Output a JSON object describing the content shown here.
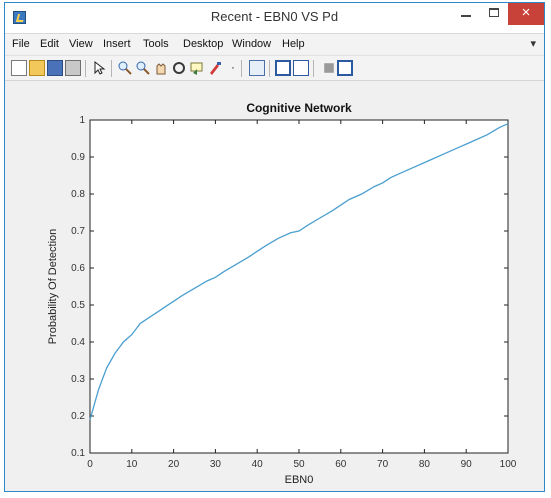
{
  "window": {
    "title": "Recent - EBN0 VS Pd",
    "close_glyph": "×"
  },
  "menu": {
    "items": [
      "File",
      "Edit",
      "View",
      "Insert",
      "Tools",
      "Desktop",
      "Window",
      "Help"
    ],
    "overflow_glyph": "▾"
  },
  "toolbar": {
    "icons": [
      "new-figure-icon",
      "open-file-icon",
      "save-icon",
      "print-icon",
      "select-arrow-icon",
      "zoom-in-icon",
      "zoom-out-icon",
      "pan-icon",
      "rotate-3d-icon",
      "data-cursor-icon",
      "brush-icon",
      "link-plot-icon",
      "colorbar-icon",
      "legend-icon",
      "hide-plot-tools-icon",
      "show-plot-tools-icon"
    ]
  },
  "chart_data": {
    "type": "line",
    "title": "Cognitive Network",
    "xlabel": "EBN0",
    "ylabel": "Probability Of Detection",
    "xlim": [
      0,
      100
    ],
    "ylim": [
      0.1,
      1
    ],
    "xticks": [
      "0",
      "10",
      "20",
      "30",
      "40",
      "50",
      "60",
      "70",
      "80",
      "90",
      "100"
    ],
    "yticks": [
      "0.1",
      "0.2",
      "0.3",
      "0.4",
      "0.5",
      "0.6",
      "0.7",
      "0.8",
      "0.9",
      "1"
    ],
    "grid": false,
    "line_color": "#4a9fd0",
    "series": [
      {
        "x": [
          0,
          1,
          2,
          3,
          4,
          5,
          6,
          7,
          8,
          9,
          10,
          12,
          14,
          16,
          18,
          20,
          22,
          25,
          28,
          30,
          32,
          35,
          38,
          40,
          42,
          45,
          48,
          50,
          52,
          55,
          58,
          60,
          62,
          65,
          68,
          70,
          72,
          75,
          78,
          80,
          82,
          85,
          88,
          90,
          92,
          95,
          98,
          100
        ],
        "y": [
          0.19,
          0.23,
          0.27,
          0.3,
          0.33,
          0.35,
          0.37,
          0.385,
          0.4,
          0.41,
          0.42,
          0.45,
          0.465,
          0.48,
          0.495,
          0.51,
          0.525,
          0.545,
          0.565,
          0.575,
          0.59,
          0.61,
          0.63,
          0.645,
          0.66,
          0.68,
          0.695,
          0.7,
          0.715,
          0.735,
          0.755,
          0.77,
          0.785,
          0.8,
          0.82,
          0.83,
          0.845,
          0.86,
          0.875,
          0.885,
          0.895,
          0.91,
          0.925,
          0.935,
          0.945,
          0.96,
          0.98,
          0.99
        ]
      }
    ]
  }
}
